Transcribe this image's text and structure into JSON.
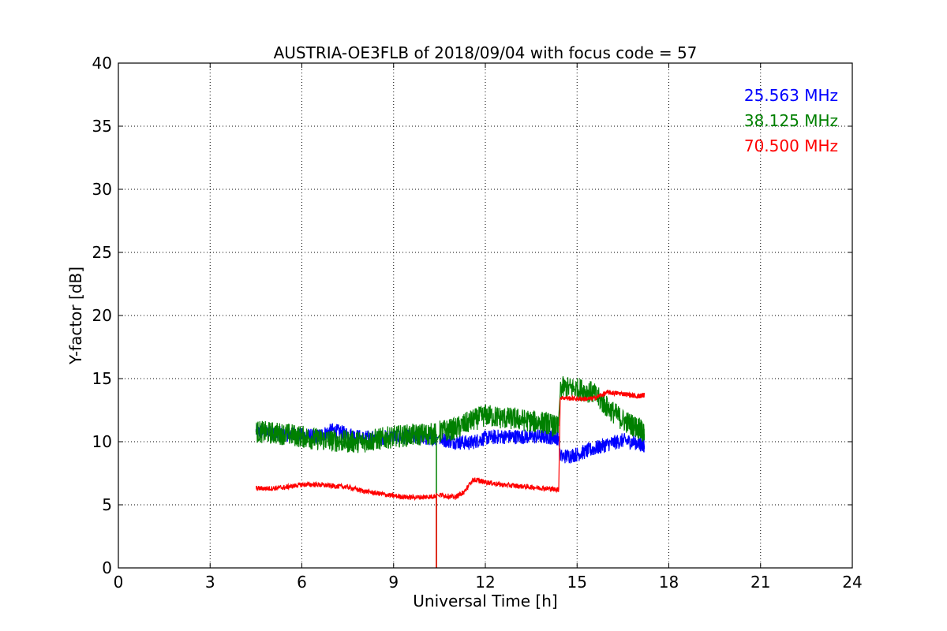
{
  "chart_data": {
    "type": "line",
    "title": "AUSTRIA-OE3FLB of 2018/09/04 with focus code = 57",
    "xlabel": "Universal Time [h]",
    "ylabel": "Y-factor [dB]",
    "xlim": [
      0,
      24
    ],
    "ylim": [
      0,
      40
    ],
    "xticks": [
      0,
      3,
      6,
      9,
      12,
      15,
      18,
      21,
      24
    ],
    "yticks": [
      0,
      5,
      10,
      15,
      20,
      25,
      30,
      35,
      40
    ],
    "grid": true,
    "legend_position": "top-right",
    "series": [
      {
        "name": "25.563 MHz",
        "color": "#0000ff",
        "x": [
          4.5,
          5.0,
          5.5,
          6.0,
          6.5,
          7.0,
          7.5,
          8.0,
          8.5,
          9.0,
          9.5,
          10.0,
          10.4,
          10.5,
          11.0,
          11.5,
          12.0,
          12.5,
          13.0,
          13.5,
          14.0,
          14.4,
          14.45,
          15.0,
          15.5,
          16.0,
          16.5,
          17.0,
          17.2
        ],
        "y": [
          10.8,
          10.7,
          10.6,
          10.5,
          10.4,
          10.9,
          10.6,
          10.3,
          10.3,
          10.4,
          10.4,
          10.3,
          10.3,
          10.2,
          10.0,
          9.9,
          10.3,
          10.4,
          10.4,
          10.4,
          10.4,
          10.3,
          8.8,
          9.0,
          9.4,
          9.8,
          10.1,
          9.9,
          9.7
        ],
        "noise": 0.6
      },
      {
        "name": "38.125 MHz",
        "color": "#008000",
        "x": [
          4.5,
          5.0,
          5.5,
          6.0,
          6.5,
          7.0,
          7.5,
          8.0,
          8.5,
          9.0,
          9.5,
          10.0,
          10.4,
          10.5,
          11.0,
          11.5,
          12.0,
          12.5,
          13.0,
          13.5,
          14.0,
          14.4,
          14.45,
          15.0,
          15.5,
          16.0,
          16.5,
          17.0,
          17.2
        ],
        "y": [
          10.8,
          10.7,
          10.6,
          10.4,
          10.2,
          10.1,
          10.0,
          10.0,
          10.2,
          10.4,
          10.5,
          10.6,
          10.6,
          10.8,
          11.0,
          11.6,
          12.1,
          11.9,
          11.8,
          11.6,
          11.5,
          11.1,
          14.3,
          14.2,
          13.9,
          12.7,
          11.7,
          11.1,
          10.6
        ],
        "noise": 0.9,
        "spike": {
          "x": 10.4,
          "y": 0
        }
      },
      {
        "name": "70.500 MHz",
        "color": "#ff0000",
        "x": [
          4.5,
          5.0,
          5.5,
          6.0,
          6.5,
          7.0,
          7.5,
          8.0,
          8.5,
          9.0,
          9.5,
          10.0,
          10.4,
          10.5,
          11.0,
          11.3,
          11.6,
          12.0,
          12.5,
          13.0,
          13.5,
          14.0,
          14.4,
          14.45,
          15.0,
          15.5,
          16.0,
          16.5,
          17.0,
          17.2
        ],
        "y": [
          6.3,
          6.3,
          6.4,
          6.6,
          6.6,
          6.5,
          6.4,
          6.1,
          5.9,
          5.7,
          5.6,
          5.6,
          5.7,
          5.8,
          5.6,
          6.0,
          7.0,
          6.8,
          6.6,
          6.5,
          6.4,
          6.3,
          6.2,
          13.5,
          13.4,
          13.4,
          13.9,
          13.8,
          13.6,
          13.7
        ],
        "noise": 0.2,
        "spike": {
          "x": 10.4,
          "y": 0
        }
      }
    ]
  }
}
